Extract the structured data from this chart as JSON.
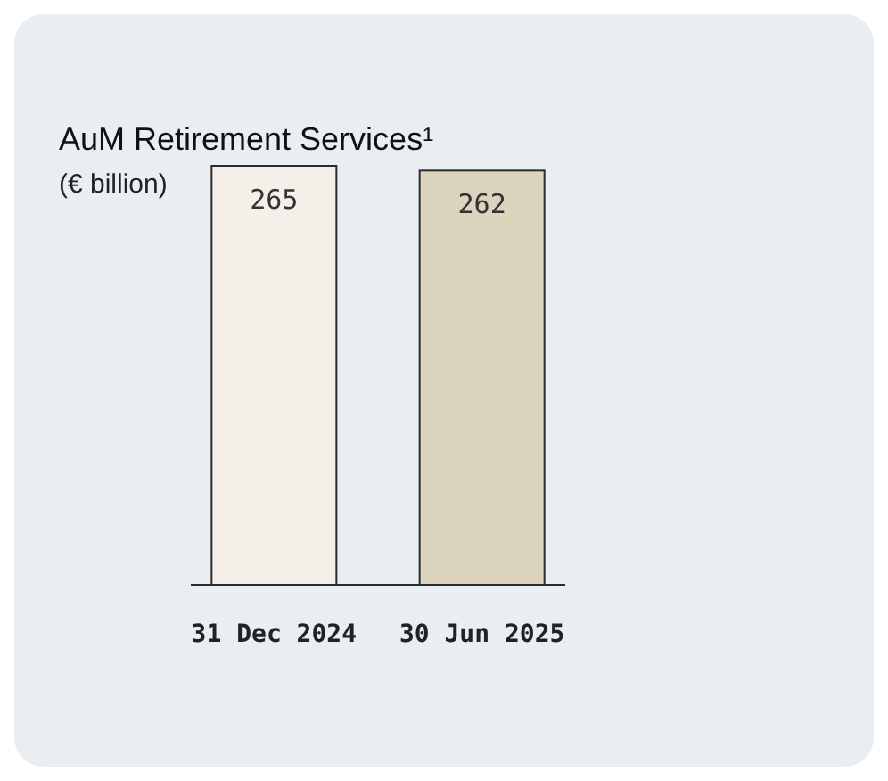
{
  "chart_data": {
    "type": "bar",
    "title": "AuM Retirement Services¹",
    "subtitle": "(€ billion)",
    "categories": [
      "31 Dec 2024",
      "30 Jun 2025"
    ],
    "values": [
      265,
      262
    ],
    "colors": [
      "#f4f0e9",
      "#ddd4bd"
    ],
    "data_labels": true
  }
}
